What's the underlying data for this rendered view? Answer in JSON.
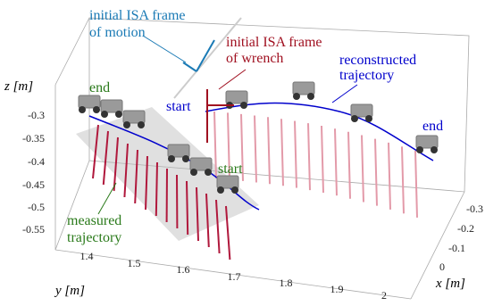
{
  "annotations": {
    "isa_motion": [
      "initial ISA frame",
      "of motion"
    ],
    "isa_wrench": [
      "initial ISA frame",
      "of wrench"
    ],
    "reconstructed": [
      "reconstructed",
      "trajectory"
    ],
    "measured": [
      "measured",
      "trajectory"
    ],
    "end_measured": "end",
    "start_reconstructed": "start",
    "end_reconstructed": "end",
    "start_measured": "start"
  },
  "axes": {
    "z": {
      "label": "z [m]",
      "ticks": [
        "-0.3",
        "-0.35",
        "-0.4",
        "-0.45",
        "-0.5",
        "-0.55"
      ]
    },
    "y": {
      "label": "y [m]",
      "ticks": [
        "1.4",
        "1.5",
        "1.6",
        "1.7",
        "1.8",
        "1.9",
        "2"
      ]
    },
    "x": {
      "label": "x [m]",
      "ticks": [
        "-0.3",
        "-0.2",
        "-0.1",
        "0"
      ]
    }
  }
}
